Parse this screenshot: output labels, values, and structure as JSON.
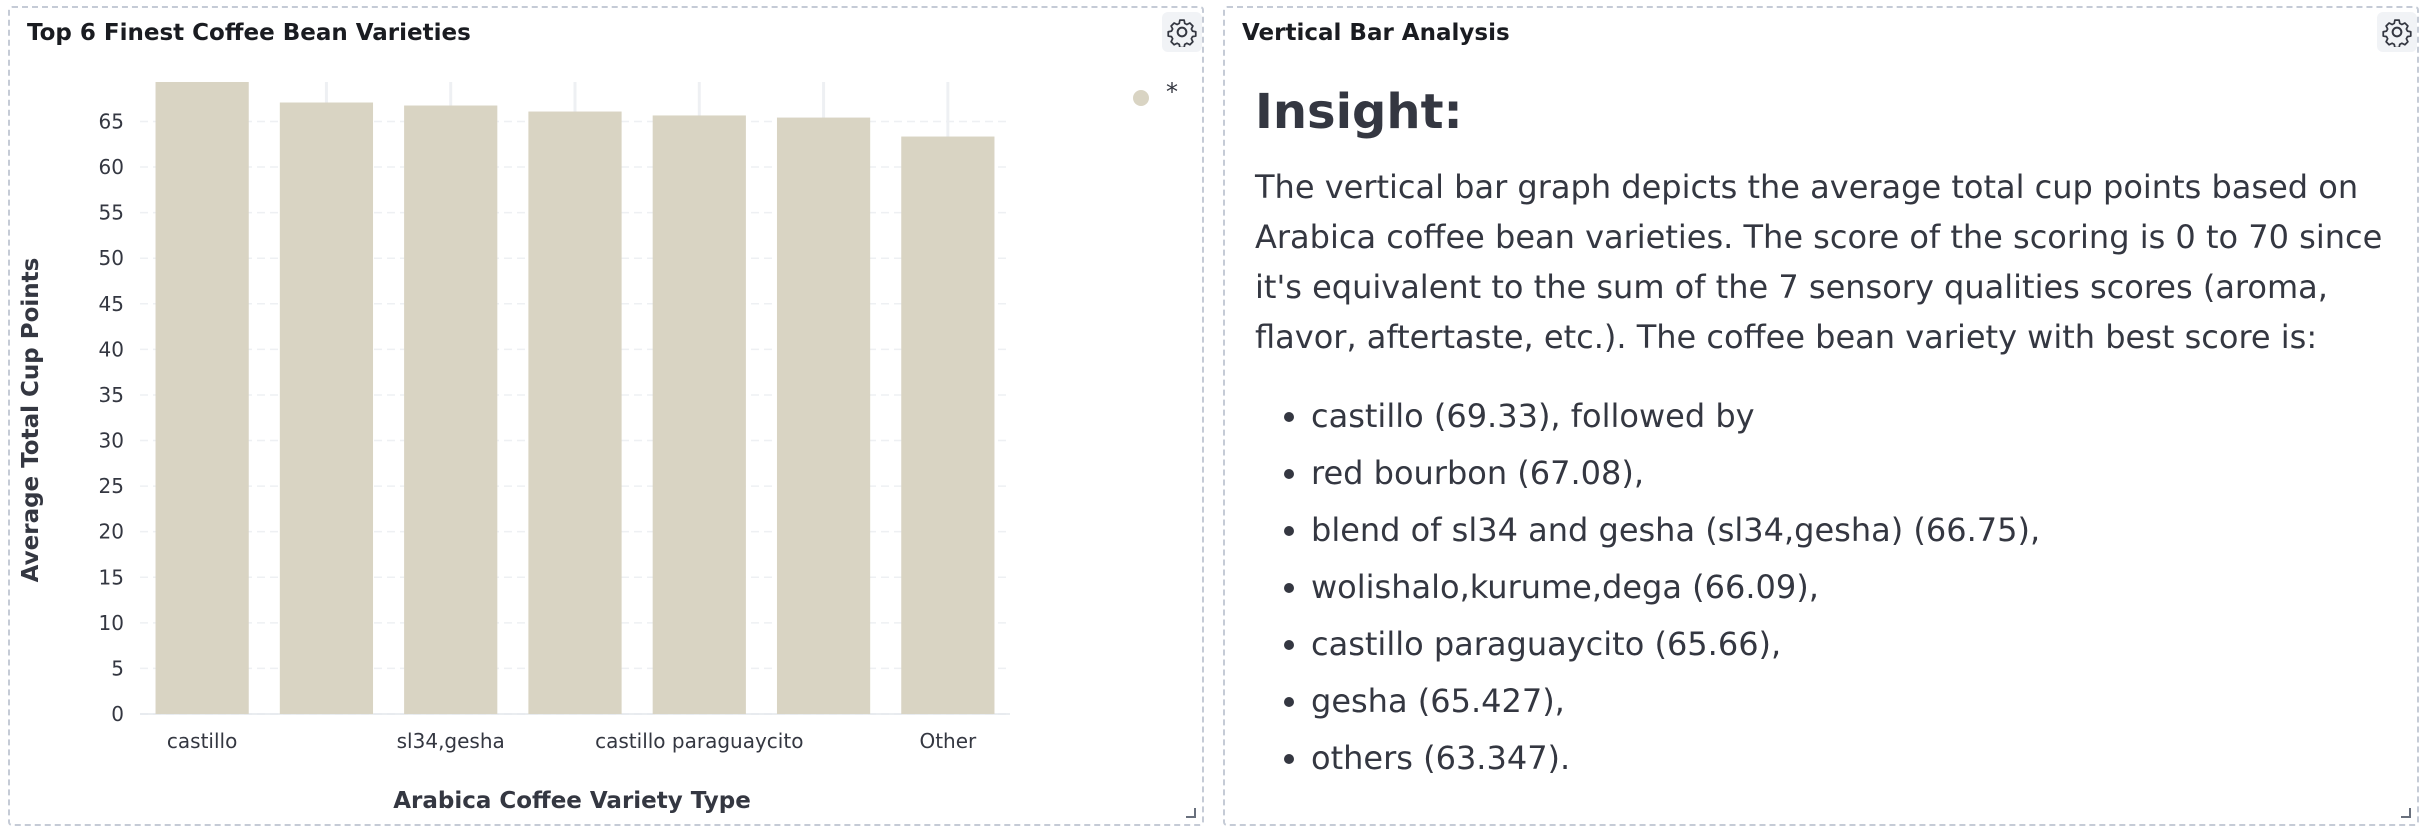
{
  "left_panel": {
    "title": "Top 6 Finest Coffee Bean Varieties"
  },
  "right_panel": {
    "title": "Vertical Bar Analysis",
    "heading": "Insight:",
    "paragraph": "The vertical bar graph depicts the average total cup points based on Arabica coffee bean varieties. The score of the scoring is 0 to 70 since it's equivalent to the sum of the 7 sensory qualities scores (aroma, flavor, aftertaste, etc.). The coffee bean variety with best score is:",
    "items": [
      "castillo (69.33), followed by",
      "red bourbon (67.08),",
      "blend of sl34 and gesha (sl34,gesha) (66.75),",
      "wolishalo,kurume,dega (66.09),",
      "castillo paraguaycito (65.66),",
      "gesha (65.427),",
      "others (63.347)."
    ]
  },
  "icons": {
    "settings": "gear-icon",
    "resize": "resize-handle-icon"
  },
  "colors": {
    "bar": "#d9d4c3",
    "legend_dot": "#d9d4c3",
    "text": "#343741",
    "grid": "#eef0f3"
  },
  "chart_data": {
    "type": "bar",
    "title": "Top 6 Finest Coffee Bean Varieties",
    "xlabel": "Arabica Coffee Variety Type",
    "ylabel": "Average Total Cup Points",
    "categories": [
      "castillo",
      "red bourbon",
      "sl34,gesha",
      "wolishalo,kurume,dega",
      "castillo paraguaycito",
      "gesha",
      "Other"
    ],
    "visible_tick_labels": [
      "castillo",
      "",
      "sl34,gesha",
      "",
      "castillo paraguaycito",
      "",
      "Other"
    ],
    "values": [
      69.33,
      67.08,
      66.75,
      66.09,
      65.66,
      65.427,
      63.347
    ],
    "series": [
      {
        "name": "*",
        "values": [
          69.33,
          67.08,
          66.75,
          66.09,
          65.66,
          65.427,
          63.347
        ]
      }
    ],
    "yticks": [
      0,
      5,
      10,
      15,
      20,
      25,
      30,
      35,
      40,
      45,
      50,
      55,
      60,
      65
    ],
    "ylim": [
      0,
      69.33
    ],
    "grid": true,
    "legend": "top-right"
  }
}
